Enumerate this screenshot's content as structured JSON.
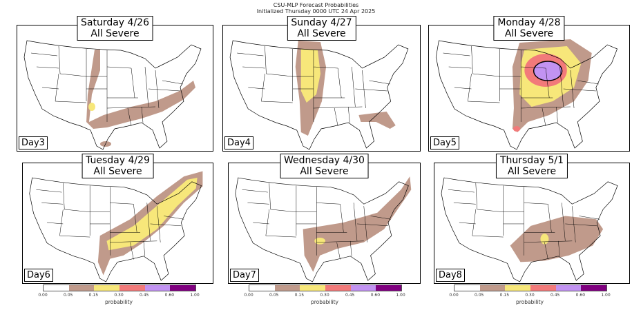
{
  "header": {
    "title": "CSU-MLP Forecast Probabilities",
    "subtitle": "Initialized Thursday 0000 UTC 24 Apr 2025"
  },
  "panels": [
    {
      "title": "Saturday 4/26",
      "subtitle": "All Severe",
      "day": "Day3"
    },
    {
      "title": "Sunday 4/27",
      "subtitle": "All Severe",
      "day": "Day4"
    },
    {
      "title": "Monday 4/28",
      "subtitle": "All Severe",
      "day": "Day5"
    },
    {
      "title": "Tuesday 4/29",
      "subtitle": "All Severe",
      "day": "Day6"
    },
    {
      "title": "Wednesday 4/30",
      "subtitle": "All Severe",
      "day": "Day7"
    },
    {
      "title": "Thursday 5/1",
      "subtitle": "All Severe",
      "day": "Day8"
    }
  ],
  "colorbar": {
    "label": "probability",
    "ticks": [
      "0.00",
      "0.05",
      "0.15",
      "0.30",
      "0.45",
      "0.60",
      "1.00"
    ],
    "colors": [
      "#ffffff",
      "#c09a8b",
      "#f7e77a",
      "#f27a7a",
      "#c293f2",
      "#7f007f"
    ]
  }
}
